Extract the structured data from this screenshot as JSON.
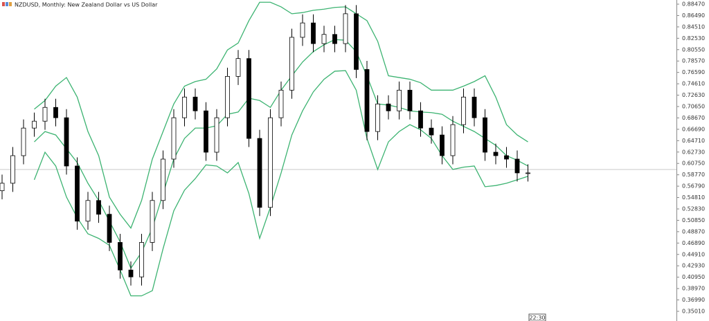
{
  "chart_data": {
    "type": "candlestick",
    "title": "NZDUSD, Monthly:  New Zealand Dollar vs US Dollar",
    "time_label": "22:30",
    "ylim": [
      0.33324,
      0.89192
    ],
    "yticks": [
      {
        "value": 0.8847,
        "label": "0.88470"
      },
      {
        "value": 0.8649,
        "label": "0.86490"
      },
      {
        "value": 0.8451,
        "label": "0.84510"
      },
      {
        "value": 0.8253,
        "label": "0.82530"
      },
      {
        "value": 0.8055,
        "label": "0.80550"
      },
      {
        "value": 0.7857,
        "label": "0.78570"
      },
      {
        "value": 0.7659,
        "label": "0.76590"
      },
      {
        "value": 0.7461,
        "label": "0.74610"
      },
      {
        "value": 0.7263,
        "label": "0.72630"
      },
      {
        "value": 0.7065,
        "label": "0.70650"
      },
      {
        "value": 0.6867,
        "label": "0.68670"
      },
      {
        "value": 0.6669,
        "label": "0.66690"
      },
      {
        "value": 0.6471,
        "label": "0.64710"
      },
      {
        "value": 0.6273,
        "label": "0.62730"
      },
      {
        "value": 0.6075,
        "label": "0.60750"
      },
      {
        "value": 0.5877,
        "label": "0.58770"
      },
      {
        "value": 0.5679,
        "label": "0.56790"
      },
      {
        "value": 0.5481,
        "label": "0.54810"
      },
      {
        "value": 0.5283,
        "label": "0.52830"
      },
      {
        "value": 0.5085,
        "label": "0.50850"
      },
      {
        "value": 0.4887,
        "label": "0.48870"
      },
      {
        "value": 0.4689,
        "label": "0.46890"
      },
      {
        "value": 0.4491,
        "label": "0.44910"
      },
      {
        "value": 0.4293,
        "label": "0.42930"
      },
      {
        "value": 0.4095,
        "label": "0.40950"
      },
      {
        "value": 0.3897,
        "label": "0.38970"
      },
      {
        "value": 0.3699,
        "label": "0.36990"
      },
      {
        "value": 0.3501,
        "label": "0.35010"
      }
    ],
    "current_price": 0.597,
    "up_color": "#ffffff",
    "down_color": "#000000",
    "open": [
      0.56,
      0.573,
      0.621,
      0.669,
      0.681,
      0.705,
      0.687,
      0.603,
      0.507,
      0.543,
      0.519,
      0.47,
      0.422,
      0.41,
      0.47,
      0.543,
      0.615,
      0.687,
      0.723,
      0.699,
      0.627,
      0.687,
      0.759,
      0.79,
      0.651,
      0.531,
      0.687,
      0.735,
      0.827,
      0.852,
      0.816,
      0.832,
      0.816,
      0.868,
      0.771,
      0.663,
      0.711,
      0.699,
      0.735,
      0.699,
      0.669,
      0.657,
      0.621,
      0.675,
      0.723,
      0.687,
      0.627,
      0.621,
      0.615,
      0.591
    ],
    "high": [
      0.588,
      0.636,
      0.684,
      0.696,
      0.72,
      0.72,
      0.702,
      0.618,
      0.558,
      0.558,
      0.534,
      0.485,
      0.437,
      0.485,
      0.558,
      0.63,
      0.702,
      0.738,
      0.738,
      0.714,
      0.702,
      0.774,
      0.805,
      0.805,
      0.666,
      0.702,
      0.75,
      0.842,
      0.867,
      0.867,
      0.847,
      0.847,
      0.883,
      0.883,
      0.786,
      0.726,
      0.726,
      0.75,
      0.75,
      0.714,
      0.684,
      0.672,
      0.69,
      0.738,
      0.738,
      0.702,
      0.642,
      0.636,
      0.63,
      0.606
    ],
    "low": [
      0.545,
      0.558,
      0.606,
      0.654,
      0.666,
      0.672,
      0.588,
      0.492,
      0.492,
      0.504,
      0.455,
      0.407,
      0.395,
      0.395,
      0.455,
      0.528,
      0.6,
      0.672,
      0.684,
      0.612,
      0.612,
      0.672,
      0.744,
      0.636,
      0.516,
      0.516,
      0.672,
      0.72,
      0.812,
      0.801,
      0.801,
      0.801,
      0.801,
      0.756,
      0.648,
      0.648,
      0.684,
      0.684,
      0.684,
      0.654,
      0.642,
      0.606,
      0.606,
      0.66,
      0.672,
      0.612,
      0.606,
      0.6,
      0.576,
      0.576
    ],
    "close": [
      0.573,
      0.621,
      0.669,
      0.681,
      0.705,
      0.687,
      0.603,
      0.507,
      0.543,
      0.519,
      0.47,
      0.422,
      0.41,
      0.47,
      0.543,
      0.615,
      0.687,
      0.723,
      0.699,
      0.627,
      0.687,
      0.759,
      0.79,
      0.651,
      0.531,
      0.687,
      0.735,
      0.827,
      0.852,
      0.816,
      0.832,
      0.816,
      0.868,
      0.771,
      0.663,
      0.711,
      0.699,
      0.735,
      0.699,
      0.669,
      0.657,
      0.621,
      0.675,
      0.723,
      0.687,
      0.627,
      0.621,
      0.615,
      0.591,
      0.591
    ],
    "bands": [
      {
        "color": "#3cb371",
        "values": [
          null,
          null,
          null,
          0.702,
          0.717,
          0.742,
          0.757,
          0.723,
          0.663,
          0.621,
          0.549,
          0.519,
          0.495,
          0.543,
          0.615,
          0.663,
          0.711,
          0.742,
          0.75,
          0.754,
          0.772,
          0.805,
          0.817,
          0.856,
          0.888,
          0.888,
          0.88,
          0.868,
          0.87,
          0.874,
          0.876,
          0.879,
          0.88,
          0.868,
          0.856,
          0.82,
          0.76,
          0.757,
          0.754,
          0.748,
          0.735,
          0.735,
          0.735,
          0.742,
          0.75,
          0.76,
          0.723,
          0.675,
          0.657,
          0.645
        ]
      },
      {
        "color": "#3cb371",
        "values": [
          null,
          null,
          null,
          0.645,
          0.663,
          0.657,
          0.633,
          0.609,
          0.573,
          0.543,
          0.507,
          0.471,
          0.425,
          0.453,
          0.495,
          0.555,
          0.615,
          0.651,
          0.669,
          0.669,
          0.673,
          0.693,
          0.697,
          0.721,
          0.717,
          0.705,
          0.735,
          0.76,
          0.784,
          0.802,
          0.814,
          0.823,
          0.822,
          0.802,
          0.76,
          0.711,
          0.709,
          0.705,
          0.699,
          0.697,
          0.696,
          0.693,
          0.681,
          0.672,
          0.663,
          0.651,
          0.639,
          0.621,
          0.613,
          0.603
        ]
      },
      {
        "color": "#3cb371",
        "values": [
          null,
          null,
          null,
          0.579,
          0.627,
          0.603,
          0.549,
          0.513,
          0.485,
          0.477,
          0.465,
          0.422,
          0.377,
          0.377,
          0.386,
          0.459,
          0.525,
          0.561,
          0.581,
          0.605,
          0.603,
          0.591,
          0.609,
          0.555,
          0.477,
          0.531,
          0.591,
          0.657,
          0.699,
          0.732,
          0.754,
          0.768,
          0.769,
          0.735,
          0.651,
          0.597,
          0.645,
          0.663,
          0.675,
          0.666,
          0.651,
          0.621,
          0.597,
          0.601,
          0.603,
          0.567,
          0.569,
          0.573,
          0.579,
          0.585
        ]
      }
    ]
  }
}
